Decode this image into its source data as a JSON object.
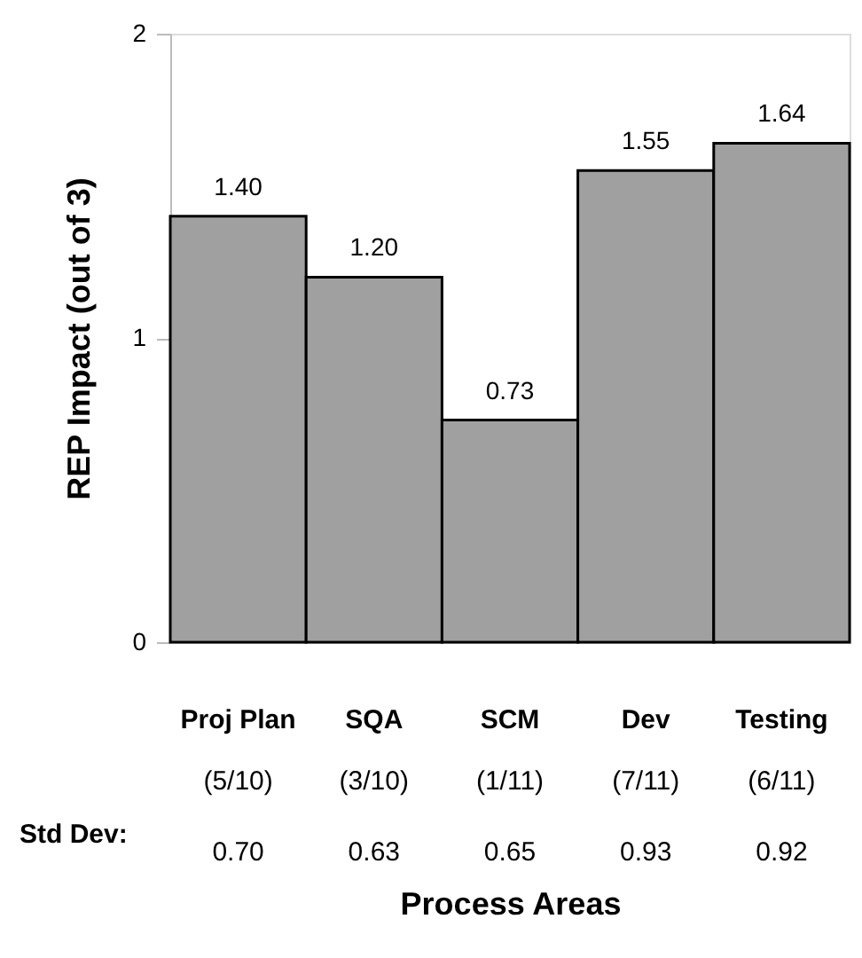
{
  "chart_data": {
    "type": "bar",
    "xlabel": "Process Areas",
    "ylabel": "REP Impact (out of 3)",
    "categories": [
      "Proj Plan",
      "SQA",
      "SCM",
      "Dev",
      "Testing"
    ],
    "values": [
      1.4,
      1.2,
      0.73,
      1.55,
      1.64
    ],
    "value_labels": [
      "1.40",
      "1.20",
      "0.73",
      "1.55",
      "1.64"
    ],
    "color": "#a0a0a0",
    "ylim": [
      0,
      2
    ],
    "yticks": [
      0,
      1,
      2
    ],
    "grid": false,
    "annotations": [
      "(5/10)",
      "(3/10)",
      "(1/11)",
      "(7/11)",
      "(6/11)",
      "Std Dev:",
      "0.70",
      "0.63",
      "0.65",
      "0.93",
      "0.92"
    ]
  }
}
